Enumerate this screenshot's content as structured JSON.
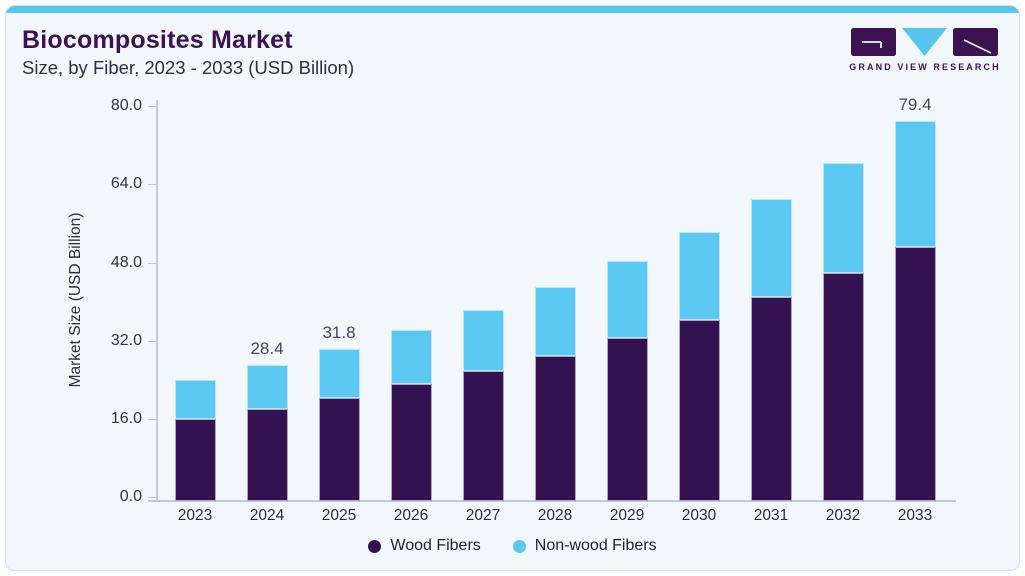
{
  "header": {
    "title": "Biocomposites Market",
    "subtitle": "Size, by Fiber, 2023 - 2033 (USD Billion)"
  },
  "logo": {
    "text": "GRAND VIEW RESEARCH"
  },
  "colors": {
    "accent_bar": "#56C6EF",
    "title_text": "#3C1253",
    "wood_fibers": "#341251",
    "non_wood_fibers": "#5BC8F1"
  },
  "chart_data": {
    "type": "bar",
    "stacked": true,
    "title": "Biocomposites Market",
    "subtitle": "Size, by Fiber, 2023 - 2033 (USD Billion)",
    "categories": [
      "2023",
      "2024",
      "2025",
      "2026",
      "2027",
      "2028",
      "2029",
      "2030",
      "2031",
      "2032",
      "2033"
    ],
    "series": [
      {
        "name": "Wood Fibers",
        "color": "#341251",
        "values": [
          17.2,
          19.3,
          21.6,
          24.4,
          27.1,
          30.3,
          34.1,
          37.9,
          42.6,
          47.6,
          53.2
        ]
      },
      {
        "name": "Non-wood Fibers",
        "color": "#5BC8F1",
        "values": [
          8.1,
          9.1,
          10.2,
          11.3,
          12.9,
          14.5,
          16.1,
          18.4,
          20.5,
          23.2,
          26.2
        ]
      }
    ],
    "totals": [
      25.3,
      28.4,
      31.8,
      35.7,
      40.0,
      44.8,
      50.2,
      56.3,
      63.1,
      70.8,
      79.4
    ],
    "bar_labels": [
      null,
      "28.4",
      "31.8",
      null,
      null,
      null,
      null,
      null,
      null,
      null,
      "79.4"
    ],
    "xlabel": "",
    "ylabel": "Market Size (USD Billion)",
    "yticks": [
      "0.0",
      "16.0",
      "32.0",
      "48.0",
      "64.0",
      "80.0"
    ],
    "ylim": [
      0,
      80
    ],
    "grid": false,
    "legend_position": "bottom"
  }
}
